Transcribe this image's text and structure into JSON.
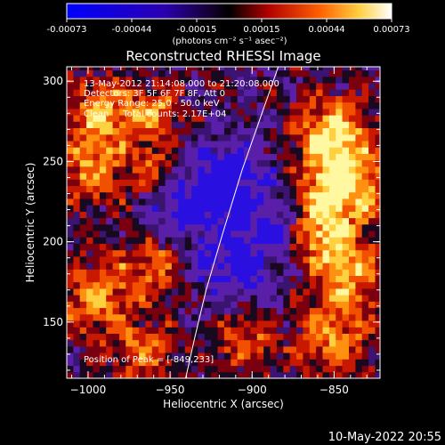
{
  "colorbar": {
    "ticks": [
      "-0.00073",
      "-0.00044",
      "-0.00015",
      "0.00015",
      "0.00044",
      "0.00073"
    ],
    "unit_label": "(photons cm⁻² s⁻¹ asec⁻²)",
    "colors": [
      "#0000ff",
      "#2200aa",
      "#100020",
      "#000000",
      "#c80000",
      "#ff8000",
      "#ffff80",
      "#ffffff"
    ]
  },
  "chart_data": {
    "type": "heatmap",
    "title": "Reconstructed RHESSI Image",
    "xlabel": "Heliocentric X (arcsec)",
    "ylabel": "Heliocentric Y (arcsec)",
    "xlim": [
      -1013,
      -822
    ],
    "ylim": [
      115,
      309
    ],
    "x_ticks": [
      {
        "value": -1000,
        "label": "−1000"
      },
      {
        "value": -950,
        "label": "−950"
      },
      {
        "value": -900,
        "label": "−900"
      },
      {
        "value": -850,
        "label": "−850"
      }
    ],
    "y_ticks": [
      {
        "value": 150,
        "label": "150"
      },
      {
        "value": 200,
        "label": "200"
      },
      {
        "value": 250,
        "label": "250"
      },
      {
        "value": 300,
        "label": "300"
      }
    ],
    "annotations": [
      "13-May-2012 21:14:08.000 to 21:20:08.000",
      "Detectors: 3F 5F 6F 7F 8F, Att 0",
      "Energy Range: 25.0 - 50.0 keV",
      "Clean     Total counts: 2.17E+04"
    ],
    "peak_label": "Position of Peak = [-849,233]",
    "limb_curve": [
      [
        -940.5,
        115
      ],
      [
        -935,
        140
      ],
      [
        -928,
        170
      ],
      [
        -918,
        205
      ],
      [
        -906,
        245
      ],
      [
        -894,
        280
      ],
      [
        -884,
        309
      ]
    ],
    "bright_regions": [
      {
        "x": -845,
        "y": 238,
        "intensity": 1.0,
        "spread": 25
      },
      {
        "x": -852,
        "y": 270,
        "intensity": 0.75,
        "spread": 20
      },
      {
        "x": -860,
        "y": 208,
        "intensity": 0.7,
        "spread": 20
      },
      {
        "x": -840,
        "y": 180,
        "intensity": 0.7,
        "spread": 22
      },
      {
        "x": -850,
        "y": 140,
        "intensity": 0.6,
        "spread": 22
      },
      {
        "x": -990,
        "y": 280,
        "intensity": 0.7,
        "spread": 22
      },
      {
        "x": -1000,
        "y": 245,
        "intensity": 0.55,
        "spread": 22
      },
      {
        "x": -995,
        "y": 165,
        "intensity": 0.6,
        "spread": 24
      },
      {
        "x": -960,
        "y": 185,
        "intensity": 0.55,
        "spread": 18
      },
      {
        "x": -965,
        "y": 130,
        "intensity": 0.5,
        "spread": 20
      },
      {
        "x": -905,
        "y": 140,
        "intensity": 0.55,
        "spread": 18
      },
      {
        "x": -958,
        "y": 280,
        "intensity": 0.55,
        "spread": 16
      },
      {
        "x": -960,
        "y": 245,
        "intensity": 0.5,
        "spread": 14
      }
    ],
    "dark_regions": [
      {
        "x": -915,
        "y": 235,
        "intensity": 0.7,
        "spread": 28
      },
      {
        "x": -910,
        "y": 185,
        "intensity": 0.6,
        "spread": 25
      },
      {
        "x": -945,
        "y": 220,
        "intensity": 0.45,
        "spread": 18
      },
      {
        "x": -880,
        "y": 210,
        "intensity": 0.4,
        "spread": 16
      }
    ]
  },
  "timestamp": "10-May-2022 20:55"
}
